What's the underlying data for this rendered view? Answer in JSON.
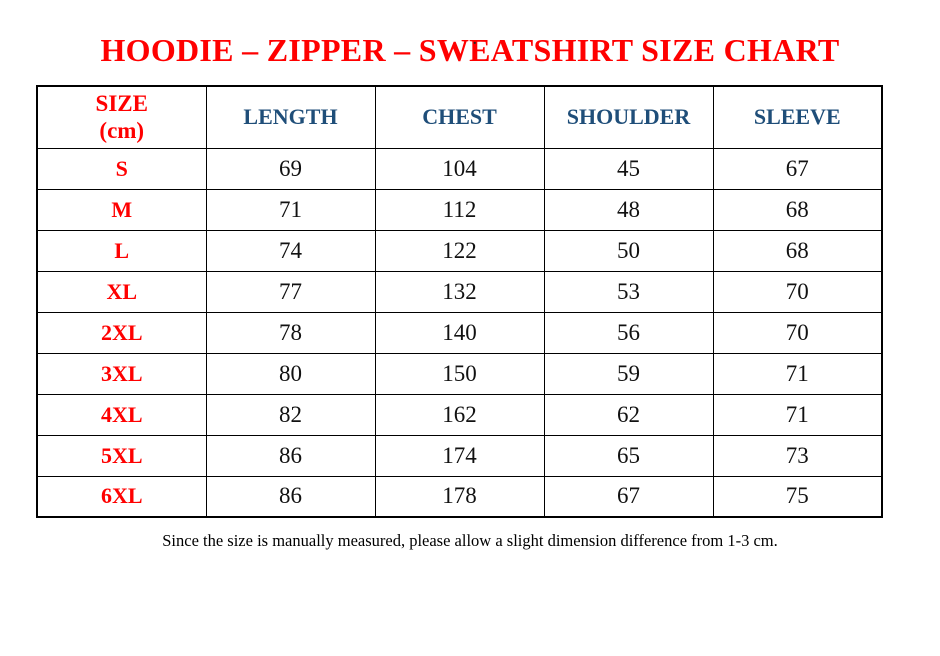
{
  "page_artifacts": {
    "top_dot": "."
  },
  "title": "HOODIE – ZIPPER – SWEATSHIRT SIZE CHART",
  "headers_display": {
    "size_multiline": "SIZE\n(cm)"
  },
  "chart_data": {
    "type": "table",
    "title": "HOODIE – ZIPPER – SWEATSHIRT SIZE CHART",
    "units": "cm",
    "columns": [
      "SIZE (cm)",
      "LENGTH",
      "CHEST",
      "SHOULDER",
      "SLEEVE"
    ],
    "rows": [
      [
        "S",
        69,
        104,
        45,
        67
      ],
      [
        "M",
        71,
        112,
        48,
        68
      ],
      [
        "L",
        74,
        122,
        50,
        68
      ],
      [
        "XL",
        77,
        132,
        53,
        70
      ],
      [
        "2XL",
        78,
        140,
        56,
        70
      ],
      [
        "3XL",
        80,
        150,
        59,
        71
      ],
      [
        "4XL",
        82,
        162,
        62,
        71
      ],
      [
        "5XL",
        86,
        174,
        65,
        73
      ],
      [
        "6XL",
        86,
        178,
        67,
        75
      ]
    ],
    "note": "Since the size is manually measured, please allow a slight dimension difference from 1-3 cm."
  },
  "colors": {
    "title_red": "#FF0000",
    "size_label_red": "#FF0000",
    "column_header_blue": "#1F4E79",
    "value_text": "#111111",
    "border": "#000000",
    "background": "#FFFFFF"
  }
}
